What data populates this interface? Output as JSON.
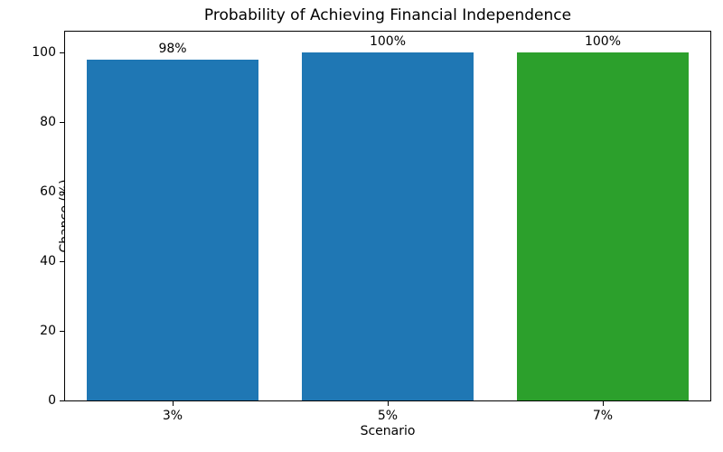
{
  "chart_data": {
    "type": "bar",
    "title": "Probability of Achieving Financial Independence",
    "xlabel": "Scenario",
    "ylabel": "Chance (%)",
    "categories": [
      "3%",
      "5%",
      "7%"
    ],
    "values": [
      98,
      100,
      100
    ],
    "bar_labels": [
      "98%",
      "100%",
      "100%"
    ],
    "bar_colors": [
      "#1f77b4",
      "#1f77b4",
      "#2ca02c"
    ],
    "yticks": [
      0,
      20,
      40,
      60,
      80,
      100
    ],
    "ylim": [
      0,
      106
    ],
    "bar_width_fraction": 0.8,
    "grid": false,
    "legend": null,
    "spine_color": "#000000",
    "background_color": "#ffffff"
  }
}
